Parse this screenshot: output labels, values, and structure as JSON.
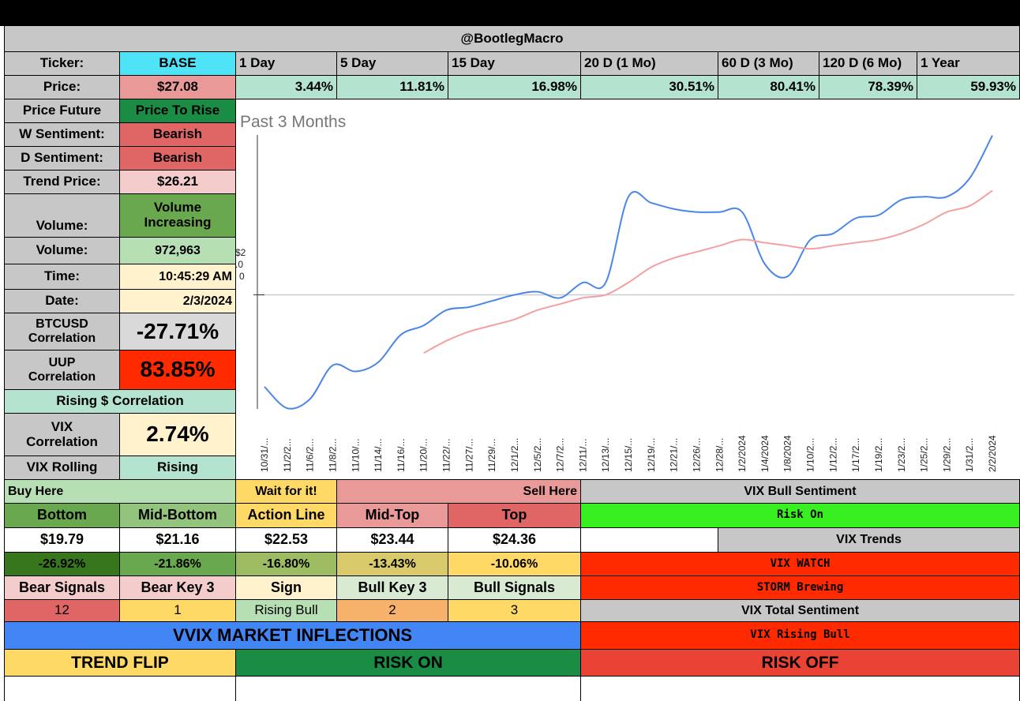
{
  "header": {
    "title": "@BootlegMacro"
  },
  "colors": {
    "cyan": "#4fe3f7",
    "green": "#1b8c43",
    "light_green": "#b7dfb4",
    "teal": "#b4e4cf",
    "pink": "#f2c2c2",
    "red": "#e06666",
    "bright_red": "#ff2a00",
    "bright_green": "#38ef1f",
    "yellow": "#ffd966",
    "cream": "#fff2cc",
    "gray": "#c7c7c7",
    "blue": "#4285f4"
  },
  "info": {
    "ticker_label": "Ticker:",
    "ticker": "BASE",
    "price_label": "Price:",
    "price": "$27.08",
    "future_label": "Price Future",
    "future": "Price To Rise",
    "w_sent_label": "W Sentiment:",
    "w_sent": "Bearish",
    "d_sent_label": "D Sentiment:",
    "d_sent": "Bearish",
    "trend_label": "Trend Price:",
    "trend": "$26.21",
    "vol_trend_label": "Volume:",
    "vol_trend_1": "Volume",
    "vol_trend_2": "Increasing",
    "volume_label": "Volume:",
    "volume": "972,963",
    "time_label": "Time:",
    "time": "10:45:29 AM",
    "date_label": "Date:",
    "date": "2/3/2024",
    "btc_label_1": "BTCUSD",
    "btc_label_2": "Correlation",
    "btc": "-27.71%",
    "uup_label_1": "UUP",
    "uup_label_2": "Correlation",
    "uup": "83.85%",
    "rising_corr": "Rising $ Correlation",
    "vix_label_1": "VIX",
    "vix_label_2": "Correlation",
    "vix": "2.74%",
    "vix_roll_label": "VIX Rolling",
    "vix_roll": "Rising"
  },
  "periods": [
    {
      "label": "1 Day",
      "value": "3.44%"
    },
    {
      "label": "5 Day",
      "value": "11.81%"
    },
    {
      "label": "15 Day",
      "value": "16.98%"
    },
    {
      "label": "20 D (1 Mo)",
      "value": "30.51%"
    },
    {
      "label": "60 D (3 Mo)",
      "value": "80.41%"
    },
    {
      "label": "120 D (6 Mo)",
      "value": "78.39%"
    },
    {
      "label": "1 Year",
      "value": "59.93%"
    }
  ],
  "chart_data": {
    "type": "line",
    "title": "Past 3 Months",
    "ytick_label_1": "$2",
    "ytick_label_2": ".0",
    "ytick_label_3": "0",
    "x": [
      "10/31/...",
      "11/2/2...",
      "11/6/2...",
      "11/8/2...",
      "11/10/...",
      "11/14/...",
      "11/16/...",
      "11/20/...",
      "11/22/...",
      "11/27/...",
      "11/29/...",
      "12/1/2...",
      "12/5/2...",
      "12/7/2...",
      "12/11/...",
      "12/13/...",
      "12/15/...",
      "12/19/...",
      "12/21/...",
      "12/26/...",
      "12/28/...",
      "1/2/2024",
      "1/4/2024",
      "1/8/2024",
      "1/10/2...",
      "1/12/2...",
      "1/17/2...",
      "1/19/2...",
      "1/23/2...",
      "1/25/2...",
      "1/29/2...",
      "1/31/2...",
      "2/2/2024"
    ],
    "series": [
      {
        "color": "#4a86e8",
        "values": [
          18.6,
          17.9,
          18.2,
          19.3,
          19.1,
          19.4,
          20.3,
          20.6,
          21.1,
          21.2,
          21.4,
          21.6,
          21.7,
          21.5,
          22.0,
          22.0,
          24.8,
          24.6,
          24.4,
          24.3,
          24.3,
          24.3,
          22.6,
          22.2,
          23.4,
          23.6,
          24.1,
          24.2,
          24.7,
          24.8,
          24.8,
          25.4,
          26.8
        ]
      },
      {
        "color": "#f4a0a0",
        "values": [
          null,
          null,
          null,
          null,
          null,
          null,
          null,
          19.7,
          20.1,
          20.4,
          20.6,
          20.8,
          21.1,
          21.3,
          21.5,
          21.6,
          22.0,
          22.5,
          22.8,
          23.0,
          23.2,
          23.4,
          23.3,
          23.2,
          23.1,
          23.2,
          23.3,
          23.4,
          23.6,
          23.9,
          24.3,
          24.5,
          25.0
        ]
      }
    ],
    "ylim": [
      17.8,
      27.2
    ],
    "ref_line": 21.6
  },
  "levels": {
    "buy_here": "Buy Here",
    "wait": "Wait for it!",
    "sell_here": "Sell Here",
    "headers": [
      "Bottom",
      "Mid-Bottom",
      "Action Line",
      "Mid-Top",
      "Top"
    ],
    "prices": [
      "$19.79",
      "$21.16",
      "$22.53",
      "$23.44",
      "$24.36"
    ],
    "pcts": [
      "-26.92%",
      "-21.86%",
      "-16.80%",
      "-13.43%",
      "-10.06%"
    ]
  },
  "signals": {
    "headers": [
      "Bear Signals",
      "Bear Key 3",
      "Sign",
      "Bull Key 3",
      "Bull Signals"
    ],
    "values": [
      "12",
      "1",
      "Rising Bull",
      "2",
      "3"
    ]
  },
  "vix_panel": {
    "bull_sentiment_label": "VIX Bull Sentiment",
    "bull_sentiment": "Risk On",
    "trends_label": "VIX Trends",
    "watch": "VIX WATCH",
    "storm": "STORM Brewing",
    "total_label": "VIX Total Sentiment",
    "total": "VIX Rising Bull"
  },
  "vvix": {
    "title": "VVIX MARKET INFLECTIONS",
    "trend_flip": "TREND FLIP",
    "risk_on": "RISK ON",
    "risk_off": "RISK OFF"
  }
}
